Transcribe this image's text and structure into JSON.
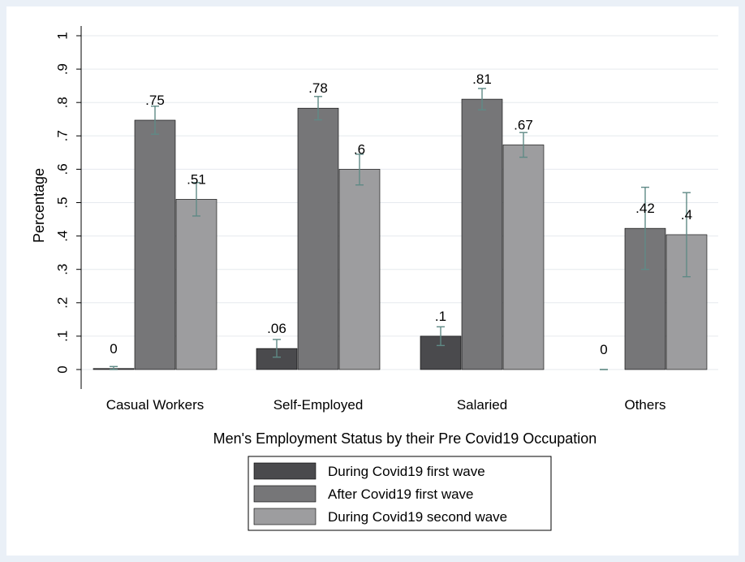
{
  "chart_data": {
    "type": "bar",
    "title": "",
    "xlabel": "Men's Employment Status by their Pre Covid19 Occupation",
    "ylabel": "Percentage",
    "ylim": [
      0,
      1
    ],
    "yticks": [
      0,
      0.1,
      0.2,
      0.3,
      0.4,
      0.5,
      0.6,
      0.7,
      0.8,
      0.9,
      1
    ],
    "ytick_labels": [
      "0",
      ".1",
      ".2",
      ".3",
      ".4",
      ".5",
      ".6",
      ".7",
      ".8",
      ".9",
      "1"
    ],
    "categories": [
      "Casual Workers",
      "Self-Employed",
      "Salaried",
      "Others"
    ],
    "series": [
      {
        "name": "During Covid19 first wave",
        "color": "#4a4a4d",
        "values": [
          0.003,
          0.063,
          0.1,
          0
        ],
        "labels": [
          "0",
          ".06",
          ".1",
          "0"
        ],
        "ci_low": [
          0.0,
          0.037,
          0.072,
          0
        ],
        "ci_high": [
          0.009,
          0.09,
          0.128,
          0
        ]
      },
      {
        "name": "After Covid19 first wave",
        "color": "#767678",
        "values": [
          0.747,
          0.783,
          0.81,
          0.423
        ],
        "labels": [
          ".75",
          ".78",
          ".81",
          ".42"
        ],
        "ci_low": [
          0.705,
          0.748,
          0.778,
          0.3
        ],
        "ci_high": [
          0.789,
          0.818,
          0.842,
          0.546
        ]
      },
      {
        "name": "During Covid19 second wave",
        "color": "#9d9d9f",
        "values": [
          0.51,
          0.6,
          0.673,
          0.404
        ],
        "labels": [
          ".51",
          ".6",
          ".67",
          ".4"
        ],
        "ci_low": [
          0.46,
          0.553,
          0.636,
          0.278
        ],
        "ci_high": [
          0.56,
          0.645,
          0.71,
          0.53
        ]
      }
    ],
    "grid": true,
    "error_bar_color": "#5f8a86",
    "legend_position": "bottom"
  }
}
